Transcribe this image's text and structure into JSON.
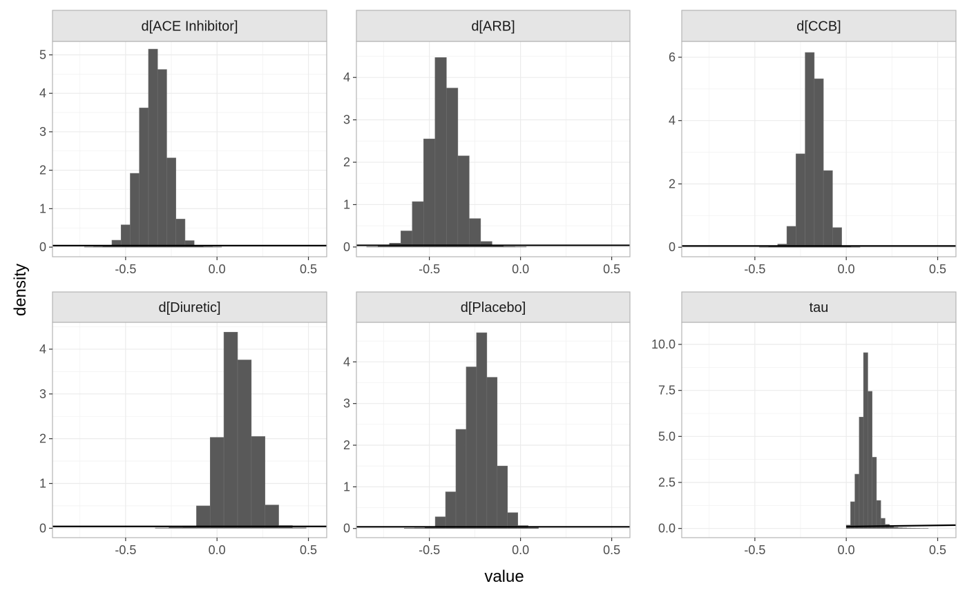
{
  "figure": {
    "xlabel": "value",
    "ylabel": "density"
  },
  "chart_data": [
    {
      "type": "bar",
      "title": "d[ACE Inhibitor]",
      "xlim": [
        -0.9,
        0.6
      ],
      "ylim": [
        -0.25,
        5.35
      ],
      "xticks": [
        -0.5,
        0.0,
        0.5
      ],
      "xtick_labels": [
        "-0.5",
        "0.0",
        "0.5"
      ],
      "yticks": [
        0,
        1,
        2,
        3,
        4,
        5
      ],
      "ytick_labels": [
        "0",
        "1",
        "2",
        "3",
        "4",
        "5"
      ],
      "bin_width": 0.05,
      "bins_center": [
        -0.7,
        -0.65,
        -0.6,
        -0.55,
        -0.5,
        -0.45,
        -0.4,
        -0.35,
        -0.3,
        -0.25,
        -0.2,
        -0.15,
        -0.1,
        -0.05,
        0.0
      ],
      "values": [
        0.005,
        0.01,
        0.03,
        0.18,
        0.58,
        1.92,
        3.62,
        5.15,
        4.62,
        2.32,
        0.73,
        0.17,
        0.03,
        0.01,
        0.005
      ],
      "prior_line": 0.04
    },
    {
      "type": "bar",
      "title": "d[ARB]",
      "xlim": [
        -0.9,
        0.6
      ],
      "ylim": [
        -0.23,
        4.85
      ],
      "xticks": [
        -0.5,
        0.0,
        0.5
      ],
      "xtick_labels": [
        "-0.5",
        "0.0",
        "0.5"
      ],
      "yticks": [
        0,
        1,
        2,
        3,
        4
      ],
      "ytick_labels": [
        "0",
        "1",
        "2",
        "3",
        "4"
      ],
      "bin_width": 0.0625,
      "bins_center": [
        -0.8125,
        -0.75,
        -0.6875,
        -0.625,
        -0.5625,
        -0.5,
        -0.4375,
        -0.375,
        -0.3125,
        -0.25,
        -0.1875,
        -0.125,
        -0.0625,
        0.0
      ],
      "values": [
        0.005,
        0.02,
        0.09,
        0.38,
        1.07,
        2.55,
        4.47,
        3.75,
        2.15,
        0.67,
        0.13,
        0.03,
        0.01,
        0.005
      ],
      "prior_line": 0.04
    },
    {
      "type": "bar",
      "title": "d[CCB]",
      "xlim": [
        -0.9,
        0.6
      ],
      "ylim": [
        -0.3,
        6.5
      ],
      "xticks": [
        -0.5,
        0.0,
        0.5
      ],
      "xtick_labels": [
        "-0.5",
        "0.0",
        "0.5"
      ],
      "yticks": [
        0,
        2,
        4,
        6
      ],
      "ytick_labels": [
        "0",
        "2",
        "4",
        "6"
      ],
      "bin_width": 0.05,
      "bins_center": [
        -0.45,
        -0.4,
        -0.35,
        -0.3,
        -0.25,
        -0.2,
        -0.15,
        -0.1,
        -0.05,
        0.0,
        0.05
      ],
      "values": [
        0.005,
        0.02,
        0.1,
        0.66,
        2.95,
        6.15,
        5.32,
        2.42,
        0.62,
        0.04,
        0.005
      ],
      "prior_line": 0.04
    },
    {
      "type": "bar",
      "title": "d[Diuretic]",
      "xlim": [
        -0.9,
        0.6
      ],
      "ylim": [
        -0.21,
        4.6
      ],
      "xticks": [
        -0.5,
        0.0,
        0.5
      ],
      "xtick_labels": [
        "-0.5",
        "0.0",
        "0.5"
      ],
      "yticks": [
        0,
        1,
        2,
        3,
        4
      ],
      "ytick_labels": [
        "0",
        "1",
        "2",
        "3",
        "4"
      ],
      "bin_width": 0.075,
      "bins_center": [
        -0.3,
        -0.225,
        -0.15,
        -0.075,
        0.0,
        0.075,
        0.15,
        0.225,
        0.3,
        0.375,
        0.45
      ],
      "values": [
        0.005,
        0.02,
        0.05,
        0.5,
        2.03,
        4.38,
        3.76,
        2.05,
        0.52,
        0.06,
        0.01
      ],
      "prior_line": 0.04
    },
    {
      "type": "bar",
      "title": "d[Placebo]",
      "xlim": [
        -0.9,
        0.6
      ],
      "ylim": [
        -0.22,
        4.95
      ],
      "xticks": [
        -0.5,
        0.0,
        0.5
      ],
      "xtick_labels": [
        "-0.5",
        "0.0",
        "0.5"
      ],
      "yticks": [
        0,
        1,
        2,
        3,
        4
      ],
      "ytick_labels": [
        "0",
        "1",
        "2",
        "3",
        "4"
      ],
      "bin_width": 0.0566,
      "bins_center": [
        -0.6092,
        -0.5526,
        -0.496,
        -0.4394,
        -0.3828,
        -0.3262,
        -0.2696,
        -0.213,
        -0.1564,
        -0.0998,
        -0.0432,
        0.0134,
        0.07
      ],
      "values": [
        0.005,
        0.01,
        0.04,
        0.28,
        0.88,
        2.38,
        3.88,
        4.7,
        3.63,
        1.5,
        0.38,
        0.07,
        0.02
      ],
      "prior_line": 0.04
    },
    {
      "type": "bar",
      "title": "tau",
      "xlim": [
        -0.9,
        0.6
      ],
      "ylim": [
        -0.5,
        11.2
      ],
      "xticks": [
        -0.5,
        0.0,
        0.5
      ],
      "xtick_labels": [
        "-0.5",
        "0.0",
        "0.5"
      ],
      "yticks": [
        0.0,
        2.5,
        5.0,
        7.5,
        10.0
      ],
      "ytick_labels": [
        "0.0",
        "2.5",
        "5.0",
        "7.5",
        "10.0"
      ],
      "bin_width": 0.0236,
      "bins_center": [
        0.0118,
        0.0354,
        0.059,
        0.0826,
        0.1062,
        0.1298,
        0.1534,
        0.177,
        0.2006,
        0.2242,
        0.2478,
        0.2714,
        0.295,
        0.3186,
        0.3422,
        0.3658,
        0.3894,
        0.413,
        0.4366
      ],
      "values": [
        0.18,
        1.45,
        2.95,
        6.05,
        9.55,
        7.45,
        3.87,
        1.52,
        0.55,
        0.22,
        0.1,
        0.06,
        0.04,
        0.03,
        0.02,
        0.015,
        0.01,
        0.005,
        0.005
      ],
      "prior_line_x": [
        0.0,
        0.6
      ],
      "prior_line": [
        0.1,
        0.18
      ]
    }
  ]
}
